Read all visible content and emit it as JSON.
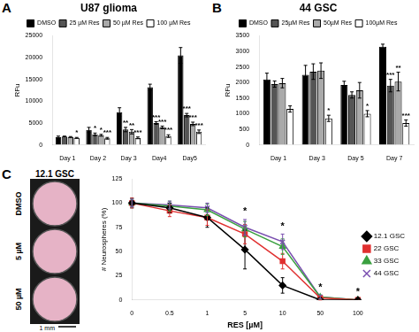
{
  "panels": [
    "A",
    "B",
    "C"
  ],
  "chart_data": [
    {
      "type": "bar",
      "title": "U87 glioma",
      "y_label": "RFu",
      "categories": [
        "Day 1",
        "Day 2",
        "Day 3",
        "Day4",
        "Day5"
      ],
      "ylim": [
        0,
        25000
      ],
      "yticks": [
        0,
        5000,
        10000,
        15000,
        20000,
        25000
      ],
      "grid": false,
      "legend": "top",
      "series": [
        {
          "name": "DMSO",
          "color": "#000000",
          "values": [
            1800,
            3400,
            7500,
            13200,
            20500
          ],
          "errors": [
            200,
            600,
            1000,
            700,
            1800
          ],
          "significance": [
            null,
            null,
            null,
            null,
            null
          ]
        },
        {
          "name": "25 µM Res",
          "color": "#555555",
          "values": [
            1900,
            2400,
            3500,
            5000,
            6800
          ],
          "errors": [
            100,
            300,
            500,
            300,
            400
          ],
          "significance": [
            null,
            "*",
            "**",
            "***",
            "***"
          ]
        },
        {
          "name": "50 µM Res",
          "color": "#aaaaaa",
          "values": [
            1800,
            2200,
            3000,
            4000,
            4800
          ],
          "errors": [
            100,
            200,
            500,
            300,
            400
          ],
          "significance": [
            null,
            "*",
            "**",
            "***",
            "***"
          ]
        },
        {
          "name": "100 µM Res",
          "color": "#ffffff",
          "values": [
            1600,
            1500,
            1600,
            2000,
            3000
          ],
          "errors": [
            100,
            200,
            200,
            300,
            400
          ],
          "significance": [
            "*",
            "***",
            "***",
            "***",
            "***"
          ]
        }
      ]
    },
    {
      "type": "bar",
      "title": "44 GSC",
      "y_label": "RFu",
      "categories": [
        "Day 1",
        "Day 3",
        "Day 5",
        "Day 7"
      ],
      "ylim": [
        0,
        3500
      ],
      "yticks": [
        0,
        500,
        1000,
        1500,
        2000,
        2500,
        3000,
        3500
      ],
      "grid": false,
      "legend": "top",
      "series": [
        {
          "name": "DMSO",
          "color": "#000000",
          "values": [
            2100,
            2250,
            1920,
            3150
          ],
          "errors": [
            200,
            300,
            120,
            80
          ],
          "significance": [
            null,
            null,
            null,
            null
          ]
        },
        {
          "name": "25µM Res",
          "color": "#555555",
          "values": [
            1950,
            2350,
            1600,
            1900
          ],
          "errors": [
            100,
            250,
            100,
            200
          ],
          "significance": [
            null,
            null,
            null,
            "***"
          ]
        },
        {
          "name": "50µM Res",
          "color": "#aaaaaa",
          "values": [
            1980,
            2380,
            1750,
            2030
          ],
          "errors": [
            150,
            250,
            250,
            300
          ],
          "significance": [
            null,
            null,
            null,
            "**"
          ]
        },
        {
          "name": "100µM Res",
          "color": "#ffffff",
          "values": [
            1150,
            850,
            1000,
            700
          ],
          "errors": [
            100,
            100,
            100,
            100
          ],
          "significance": [
            null,
            "*",
            "*",
            "***"
          ]
        }
      ]
    },
    {
      "type": "line",
      "x_label": "RES [µM]",
      "y_label": "# Neurospheres (%)",
      "categories": [
        "0",
        "0.5",
        "1",
        "5",
        "10",
        "50",
        "100"
      ],
      "ylim": [
        0,
        125
      ],
      "yticks": [
        0,
        25,
        50,
        75,
        100,
        125
      ],
      "grid": false,
      "legend": "right",
      "significance": [
        null,
        null,
        null,
        "*",
        "*",
        "*",
        "*"
      ],
      "series": [
        {
          "name": "12.1 GSC",
          "color": "#000000",
          "marker": "diamond",
          "values": [
            100,
            95,
            85,
            52,
            15,
            0,
            0
          ],
          "errors": [
            5,
            5,
            10,
            20,
            8,
            0,
            0
          ]
        },
        {
          "name": "22 GSC",
          "color": "#e03030",
          "marker": "square",
          "values": [
            100,
            92,
            85,
            68,
            40,
            2,
            0
          ],
          "errors": [
            5,
            6,
            8,
            10,
            8,
            2,
            0
          ]
        },
        {
          "name": "33 GSC",
          "color": "#3aa040",
          "marker": "triangle",
          "values": [
            100,
            97,
            93,
            73,
            55,
            3,
            0
          ],
          "errors": [
            4,
            5,
            6,
            8,
            8,
            2,
            0
          ]
        },
        {
          "name": "44 GSC",
          "color": "#7a4fb0",
          "marker": "x",
          "values": [
            100,
            98,
            95,
            75,
            60,
            3,
            0
          ],
          "errors": [
            4,
            4,
            5,
            8,
            8,
            2,
            0
          ]
        }
      ]
    }
  ],
  "images": {
    "title": "12.1 GSC",
    "rows": [
      "DMSO",
      "5 µM",
      "50 µM"
    ],
    "scale_bar": "1 mm"
  }
}
